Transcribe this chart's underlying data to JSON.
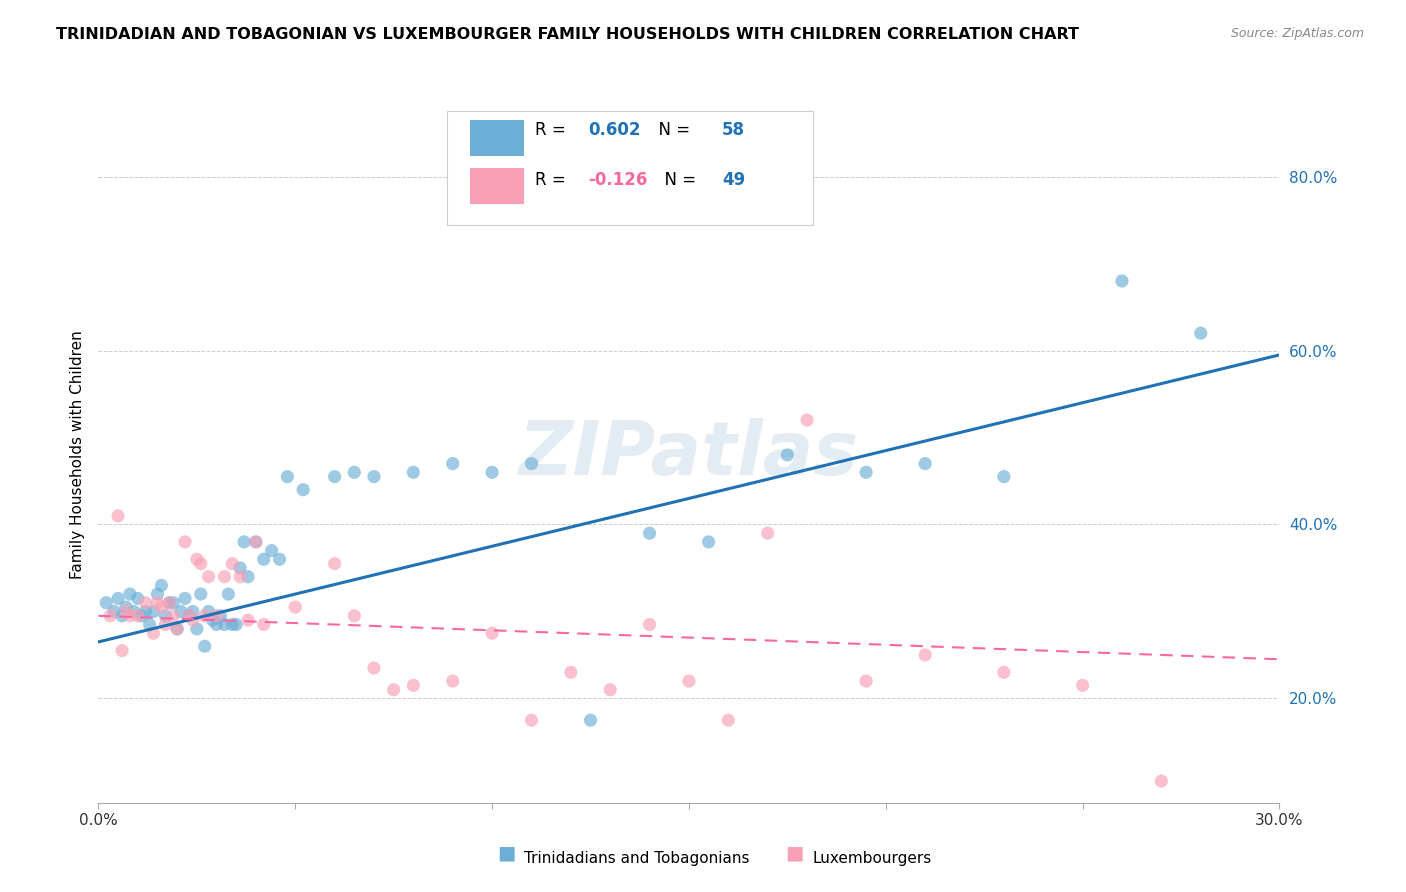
{
  "title": "TRINIDADIAN AND TOBAGONIAN VS LUXEMBOURGER FAMILY HOUSEHOLDS WITH CHILDREN CORRELATION CHART",
  "source": "Source: ZipAtlas.com",
  "ylabel": "Family Households with Children",
  "y_ticks": [
    0.2,
    0.4,
    0.6,
    0.8
  ],
  "y_tick_labels": [
    "20.0%",
    "40.0%",
    "60.0%",
    "80.0%"
  ],
  "x_min": 0.0,
  "x_max": 0.3,
  "y_min": 0.08,
  "y_max": 0.88,
  "blue_R": 0.602,
  "blue_N": 58,
  "pink_R": -0.126,
  "pink_N": 49,
  "blue_color": "#6baed6",
  "pink_color": "#fa9fb5",
  "blue_line_color": "#2171b5",
  "pink_line_color": "#f768a1",
  "legend_label_blue": "Trinidadians and Tobagonians",
  "legend_label_pink": "Luxembourgers",
  "watermark": "ZIPatlas",
  "blue_scatter_x": [
    0.002,
    0.004,
    0.005,
    0.006,
    0.007,
    0.008,
    0.009,
    0.01,
    0.011,
    0.012,
    0.013,
    0.014,
    0.015,
    0.016,
    0.017,
    0.018,
    0.019,
    0.02,
    0.021,
    0.022,
    0.023,
    0.024,
    0.025,
    0.026,
    0.027,
    0.028,
    0.029,
    0.03,
    0.031,
    0.032,
    0.033,
    0.034,
    0.035,
    0.036,
    0.037,
    0.038,
    0.04,
    0.042,
    0.044,
    0.046,
    0.048,
    0.052,
    0.06,
    0.065,
    0.07,
    0.08,
    0.09,
    0.1,
    0.11,
    0.125,
    0.14,
    0.155,
    0.175,
    0.195,
    0.21,
    0.23,
    0.26,
    0.28
  ],
  "blue_scatter_y": [
    0.31,
    0.3,
    0.315,
    0.295,
    0.305,
    0.32,
    0.3,
    0.315,
    0.295,
    0.3,
    0.285,
    0.3,
    0.32,
    0.33,
    0.295,
    0.31,
    0.31,
    0.28,
    0.3,
    0.315,
    0.295,
    0.3,
    0.28,
    0.32,
    0.26,
    0.3,
    0.29,
    0.285,
    0.295,
    0.285,
    0.32,
    0.285,
    0.285,
    0.35,
    0.38,
    0.34,
    0.38,
    0.36,
    0.37,
    0.36,
    0.455,
    0.44,
    0.455,
    0.46,
    0.455,
    0.46,
    0.47,
    0.46,
    0.47,
    0.175,
    0.39,
    0.38,
    0.48,
    0.46,
    0.47,
    0.455,
    0.68,
    0.62
  ],
  "pink_scatter_x": [
    0.003,
    0.005,
    0.006,
    0.007,
    0.008,
    0.01,
    0.012,
    0.014,
    0.015,
    0.016,
    0.017,
    0.018,
    0.019,
    0.02,
    0.022,
    0.023,
    0.024,
    0.025,
    0.026,
    0.027,
    0.028,
    0.03,
    0.032,
    0.034,
    0.036,
    0.038,
    0.04,
    0.042,
    0.05,
    0.06,
    0.065,
    0.07,
    0.075,
    0.08,
    0.09,
    0.1,
    0.11,
    0.12,
    0.13,
    0.14,
    0.15,
    0.16,
    0.17,
    0.18,
    0.195,
    0.21,
    0.23,
    0.25,
    0.27
  ],
  "pink_scatter_y": [
    0.295,
    0.41,
    0.255,
    0.3,
    0.295,
    0.295,
    0.31,
    0.275,
    0.31,
    0.305,
    0.285,
    0.31,
    0.295,
    0.28,
    0.38,
    0.295,
    0.29,
    0.36,
    0.355,
    0.295,
    0.34,
    0.295,
    0.34,
    0.355,
    0.34,
    0.29,
    0.38,
    0.285,
    0.305,
    0.355,
    0.295,
    0.235,
    0.21,
    0.215,
    0.22,
    0.275,
    0.175,
    0.23,
    0.21,
    0.285,
    0.22,
    0.175,
    0.39,
    0.52,
    0.22,
    0.25,
    0.23,
    0.215,
    0.105
  ],
  "blue_line_x": [
    0.0,
    0.3
  ],
  "blue_line_y": [
    0.265,
    0.595
  ],
  "pink_line_x": [
    0.0,
    0.3
  ],
  "pink_line_y": [
    0.295,
    0.245
  ]
}
